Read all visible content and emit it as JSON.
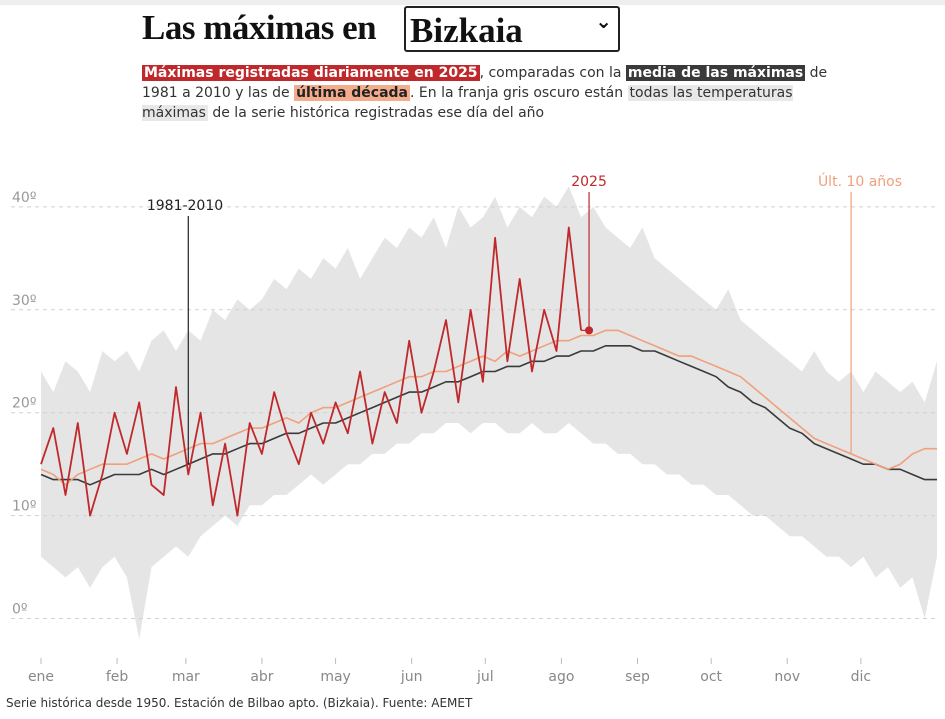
{
  "header": {
    "title": "Las máximas en",
    "select": "Bizkaia",
    "subtitle": [
      "Máximas registradas diariamente en 2025",
      ", comparadas con la ",
      "media de las máximas",
      " de 1981 a 2010 y las de ",
      "última década",
      ". En la franja gris oscuro están ",
      "todas las temperaturas máximas",
      " de la serie histórica registradas ese día del año"
    ]
  },
  "chart_data": {
    "type": "line",
    "x": [
      1,
      6,
      11,
      16,
      21,
      26,
      31,
      36,
      41,
      46,
      51,
      56,
      61,
      66,
      71,
      76,
      81,
      86,
      91,
      96,
      101,
      106,
      111,
      116,
      121,
      126,
      131,
      136,
      141,
      146,
      151,
      156,
      161,
      166,
      171,
      176,
      181,
      186,
      191,
      196,
      201,
      206,
      211,
      216,
      221,
      226,
      231,
      236,
      241,
      246,
      251,
      256,
      261,
      266,
      271,
      276,
      281,
      286,
      291,
      296,
      301,
      306,
      311,
      316,
      321,
      326,
      331,
      336,
      341,
      346,
      351,
      356,
      361,
      366
    ],
    "band": {
      "color": "#e5e5e5",
      "upper": [
        24,
        22,
        25,
        24,
        22,
        26,
        25,
        26,
        24,
        27,
        28,
        26,
        28,
        27,
        30,
        29,
        31,
        30,
        31,
        33,
        32,
        34,
        33,
        35,
        34,
        36,
        33,
        35,
        37,
        36,
        38,
        37,
        39,
        36,
        40,
        38,
        39,
        41,
        38,
        40,
        39,
        41,
        40,
        42,
        39,
        40,
        38,
        37,
        36,
        38,
        35,
        34,
        33,
        32,
        31,
        30,
        32,
        29,
        28,
        27,
        26,
        25,
        24,
        26,
        24,
        23,
        24,
        22,
        24,
        23,
        22,
        23,
        21,
        25
      ],
      "lower": [
        6,
        5,
        4,
        5,
        3,
        5,
        6,
        4,
        -2,
        5,
        6,
        7,
        6,
        8,
        9,
        10,
        9,
        11,
        11,
        12,
        12,
        13,
        14,
        13,
        14,
        15,
        15,
        16,
        16,
        17,
        17,
        18,
        18,
        19,
        19,
        18,
        19,
        19,
        18,
        18,
        19,
        18,
        18,
        19,
        18,
        17,
        17,
        16,
        16,
        15,
        15,
        14,
        14,
        13,
        13,
        12,
        12,
        11,
        10,
        10,
        9,
        8,
        8,
        7,
        6,
        6,
        5,
        6,
        4,
        5,
        3,
        4,
        0,
        6
      ]
    },
    "series": [
      {
        "name": "1981-2010",
        "color": "#3a3a3a",
        "values": [
          14,
          13.5,
          13.5,
          13.5,
          13,
          13.5,
          14,
          14,
          14,
          14.5,
          14,
          14.5,
          15,
          15.5,
          16,
          16,
          16.5,
          17,
          17,
          17.5,
          18,
          18,
          18.5,
          19,
          19,
          19.5,
          20,
          20.5,
          21,
          21.5,
          22,
          22,
          22.5,
          23,
          23,
          23.5,
          24,
          24,
          24.5,
          24.5,
          25,
          25,
          25.5,
          25.5,
          26,
          26,
          26.5,
          26.5,
          26.5,
          26,
          26,
          25.5,
          25,
          24.5,
          24,
          23.5,
          22.5,
          22,
          21,
          20.5,
          19.5,
          18.5,
          18,
          17,
          16.5,
          16,
          15.5,
          15,
          15,
          14.5,
          14.5,
          14,
          13.5,
          13.5
        ]
      },
      {
        "name": "Últ. 10 años",
        "color": "#f0a07c",
        "values": [
          14.5,
          14,
          13,
          14,
          14.5,
          15,
          15,
          15,
          15.5,
          16,
          15.5,
          16,
          16.5,
          17,
          17,
          17.5,
          18,
          18.5,
          18.5,
          19,
          19.5,
          19,
          20,
          20.5,
          20.5,
          21,
          21.5,
          22,
          22.5,
          23,
          23.5,
          23.5,
          24,
          24,
          24.5,
          25,
          25.5,
          25,
          26,
          25.5,
          26,
          26.5,
          27,
          27,
          27.5,
          27.5,
          28,
          28,
          27.5,
          27,
          26.5,
          26,
          25.5,
          25.5,
          25,
          24.5,
          24,
          23.5,
          22.5,
          21.5,
          20.5,
          19.5,
          18.5,
          17.5,
          17,
          16.5,
          16,
          15.5,
          15,
          14.5,
          15,
          16,
          16.5,
          16.5
        ]
      },
      {
        "name": "2025",
        "color": "#c0292b",
        "values": [
          15,
          18.5,
          12,
          19,
          10,
          14,
          20,
          16,
          21,
          13,
          12,
          22.5,
          14,
          20,
          11,
          17,
          10,
          19,
          16,
          22,
          18,
          15,
          20,
          17,
          21,
          18,
          24,
          17,
          22,
          19,
          27,
          20,
          24,
          29,
          21,
          30,
          23,
          37,
          25,
          33,
          24,
          30,
          26,
          38,
          28,
          null,
          null,
          null,
          null,
          null,
          null,
          null,
          null,
          null,
          null,
          null,
          null,
          null,
          null,
          null,
          null,
          null,
          null,
          null,
          null,
          null,
          null,
          null,
          null,
          null,
          null,
          null,
          null,
          null
        ]
      }
    ],
    "xlim": [
      1,
      366
    ],
    "xticks": [
      {
        "value": 1,
        "label": "ene"
      },
      {
        "value": 32,
        "label": "feb"
      },
      {
        "value": 60,
        "label": "mar"
      },
      {
        "value": 91,
        "label": "abr"
      },
      {
        "value": 121,
        "label": "may"
      },
      {
        "value": 152,
        "label": "jun"
      },
      {
        "value": 182,
        "label": "jul"
      },
      {
        "value": 213,
        "label": "ago"
      },
      {
        "value": 244,
        "label": "sep"
      },
      {
        "value": 274,
        "label": "oct"
      },
      {
        "value": 305,
        "label": "nov"
      },
      {
        "value": 335,
        "label": "dic"
      }
    ],
    "ylim": [
      -5,
      43
    ],
    "yticks": [
      {
        "value": 0,
        "label": "0º"
      },
      {
        "value": 10,
        "label": "10º"
      },
      {
        "value": 20,
        "label": "20º"
      },
      {
        "value": 30,
        "label": "30º"
      },
      {
        "value": 40,
        "label": "40º"
      }
    ],
    "grid": true
  },
  "footer": {
    "source": "Serie histórica desde 1950. Estación de Bilbao apto. (Bizkaia). Fuente: AEMET"
  }
}
